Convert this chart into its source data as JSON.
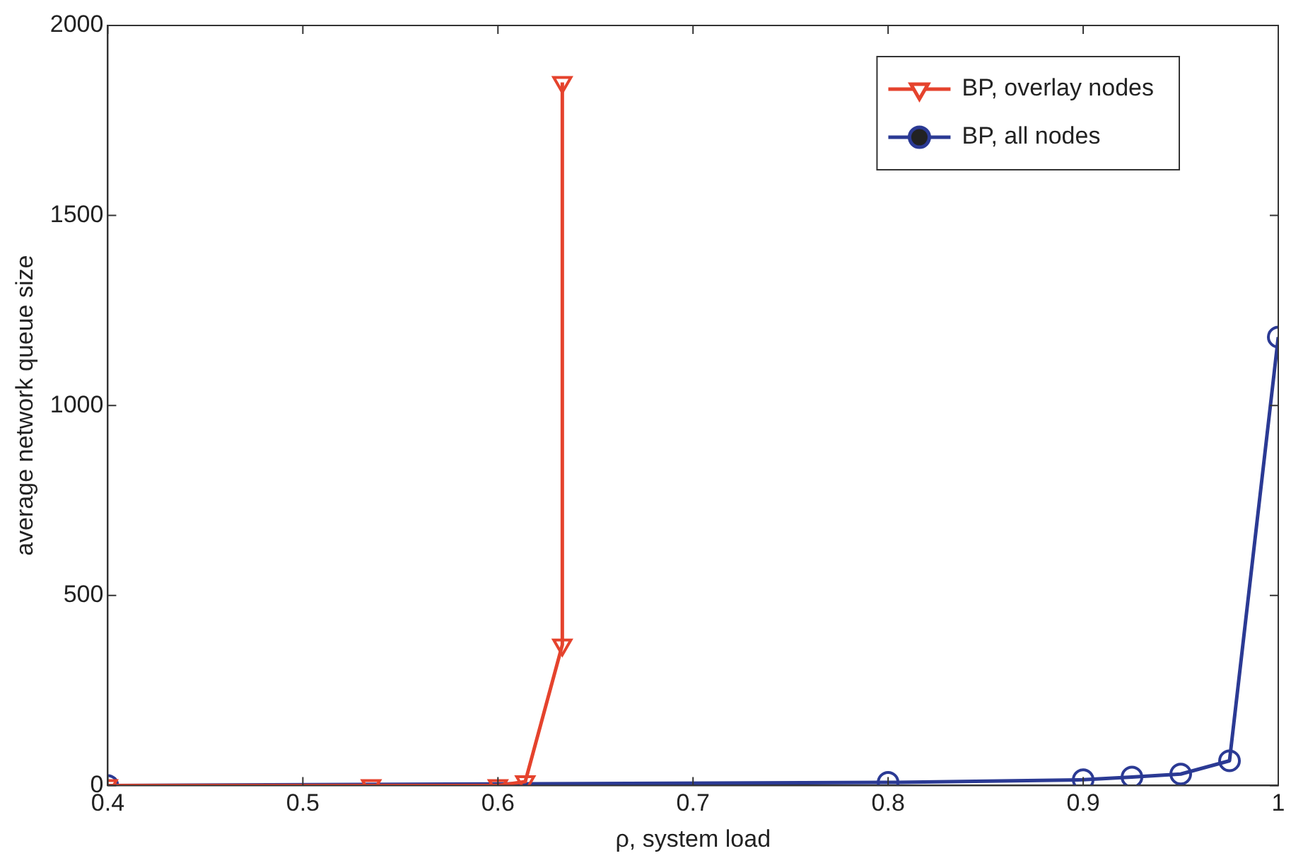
{
  "chart_data": {
    "type": "line",
    "xlabel": "ρ, system load",
    "ylabel": "average network queue size",
    "xlim": [
      0.4,
      1
    ],
    "xticks": [
      0.4,
      0.5,
      0.6,
      0.7,
      0.8,
      0.9,
      1
    ],
    "ylim": [
      0,
      2000
    ],
    "yticks": [
      0,
      500,
      1000,
      1500,
      2000
    ],
    "grid": false,
    "legend": "top right",
    "series": [
      {
        "name": "BP, overlay nodes",
        "color": "#e5432d",
        "marker": "triangle",
        "x": [
          0.4,
          0.535,
          0.6,
          0.614,
          0.633,
          0.633
        ],
        "values": [
          0,
          0,
          0,
          10,
          370,
          1850
        ]
      },
      {
        "name": "BP, all nodes",
        "color": "#2b3a94",
        "marker": "circle",
        "x": [
          0.4,
          0.8,
          0.9,
          0.925,
          0.95,
          0.975,
          1.0
        ],
        "values": [
          0,
          8,
          15,
          22,
          30,
          65,
          1180
        ]
      }
    ]
  }
}
